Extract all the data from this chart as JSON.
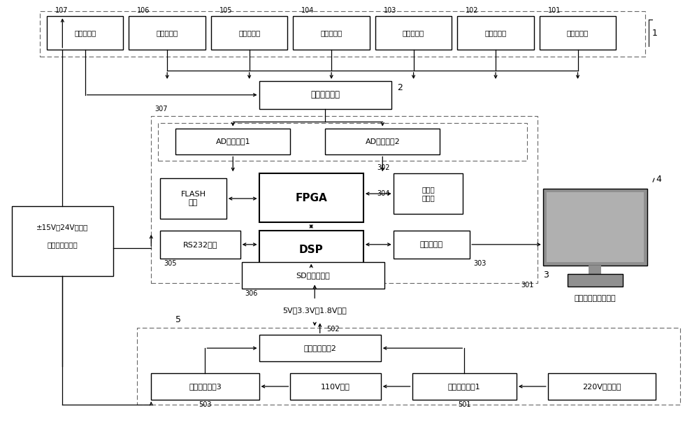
{
  "fig_width": 10.0,
  "fig_height": 6.21,
  "bg_color": "#ffffff",
  "sensor_labels": [
    "转速传感器",
    "扭矩传感器",
    "压力传感器",
    "温度传感器",
    "流量传感器",
    "振动传感器",
    "压差传感器"
  ],
  "sensor_ids": [
    "107",
    "106",
    "105",
    "104",
    "103",
    "102",
    "101"
  ],
  "signal_module": "信号调理模块",
  "signal_module_id": "2",
  "power_box_line1": "±15V、24V、直流",
  "power_box_line2": "电压源，恒流源",
  "main_board_label": "307",
  "main_board_id": "3",
  "ad1_label": "AD模数转换1",
  "ad2_label": "AD模数转换2",
  "fpga_label": "FPGA",
  "dsp_label": "DSP",
  "flash_label": "FLASH\n模块",
  "rs232_label": "RS232模块",
  "sd_label": "SD卡存储模块",
  "iron_label": "铁电存\n储模块",
  "ethernet_label": "以太网模块",
  "board_id": "301",
  "iron_id": "302",
  "eth_id": "303",
  "fpga_id": "304",
  "rs232_id": "305",
  "sd_id": "306",
  "computer_label": "上位机智能诊断系统",
  "computer_id": "4",
  "power_section_id": "5",
  "power2_label": "电源转换模块2",
  "power2_id": "502",
  "power1_label": "电源转换模块1",
  "power1_id": "501",
  "ac_label": "220V交流电源",
  "dc110_label": "110V直流",
  "power3_label": "电源转换模块3",
  "power3_id": "503",
  "dc_label": "5V、3.3V、1.8V直流",
  "ref1_label": "1",
  "gray_monitor": "#909090",
  "gray_base": "#a0a0a0"
}
